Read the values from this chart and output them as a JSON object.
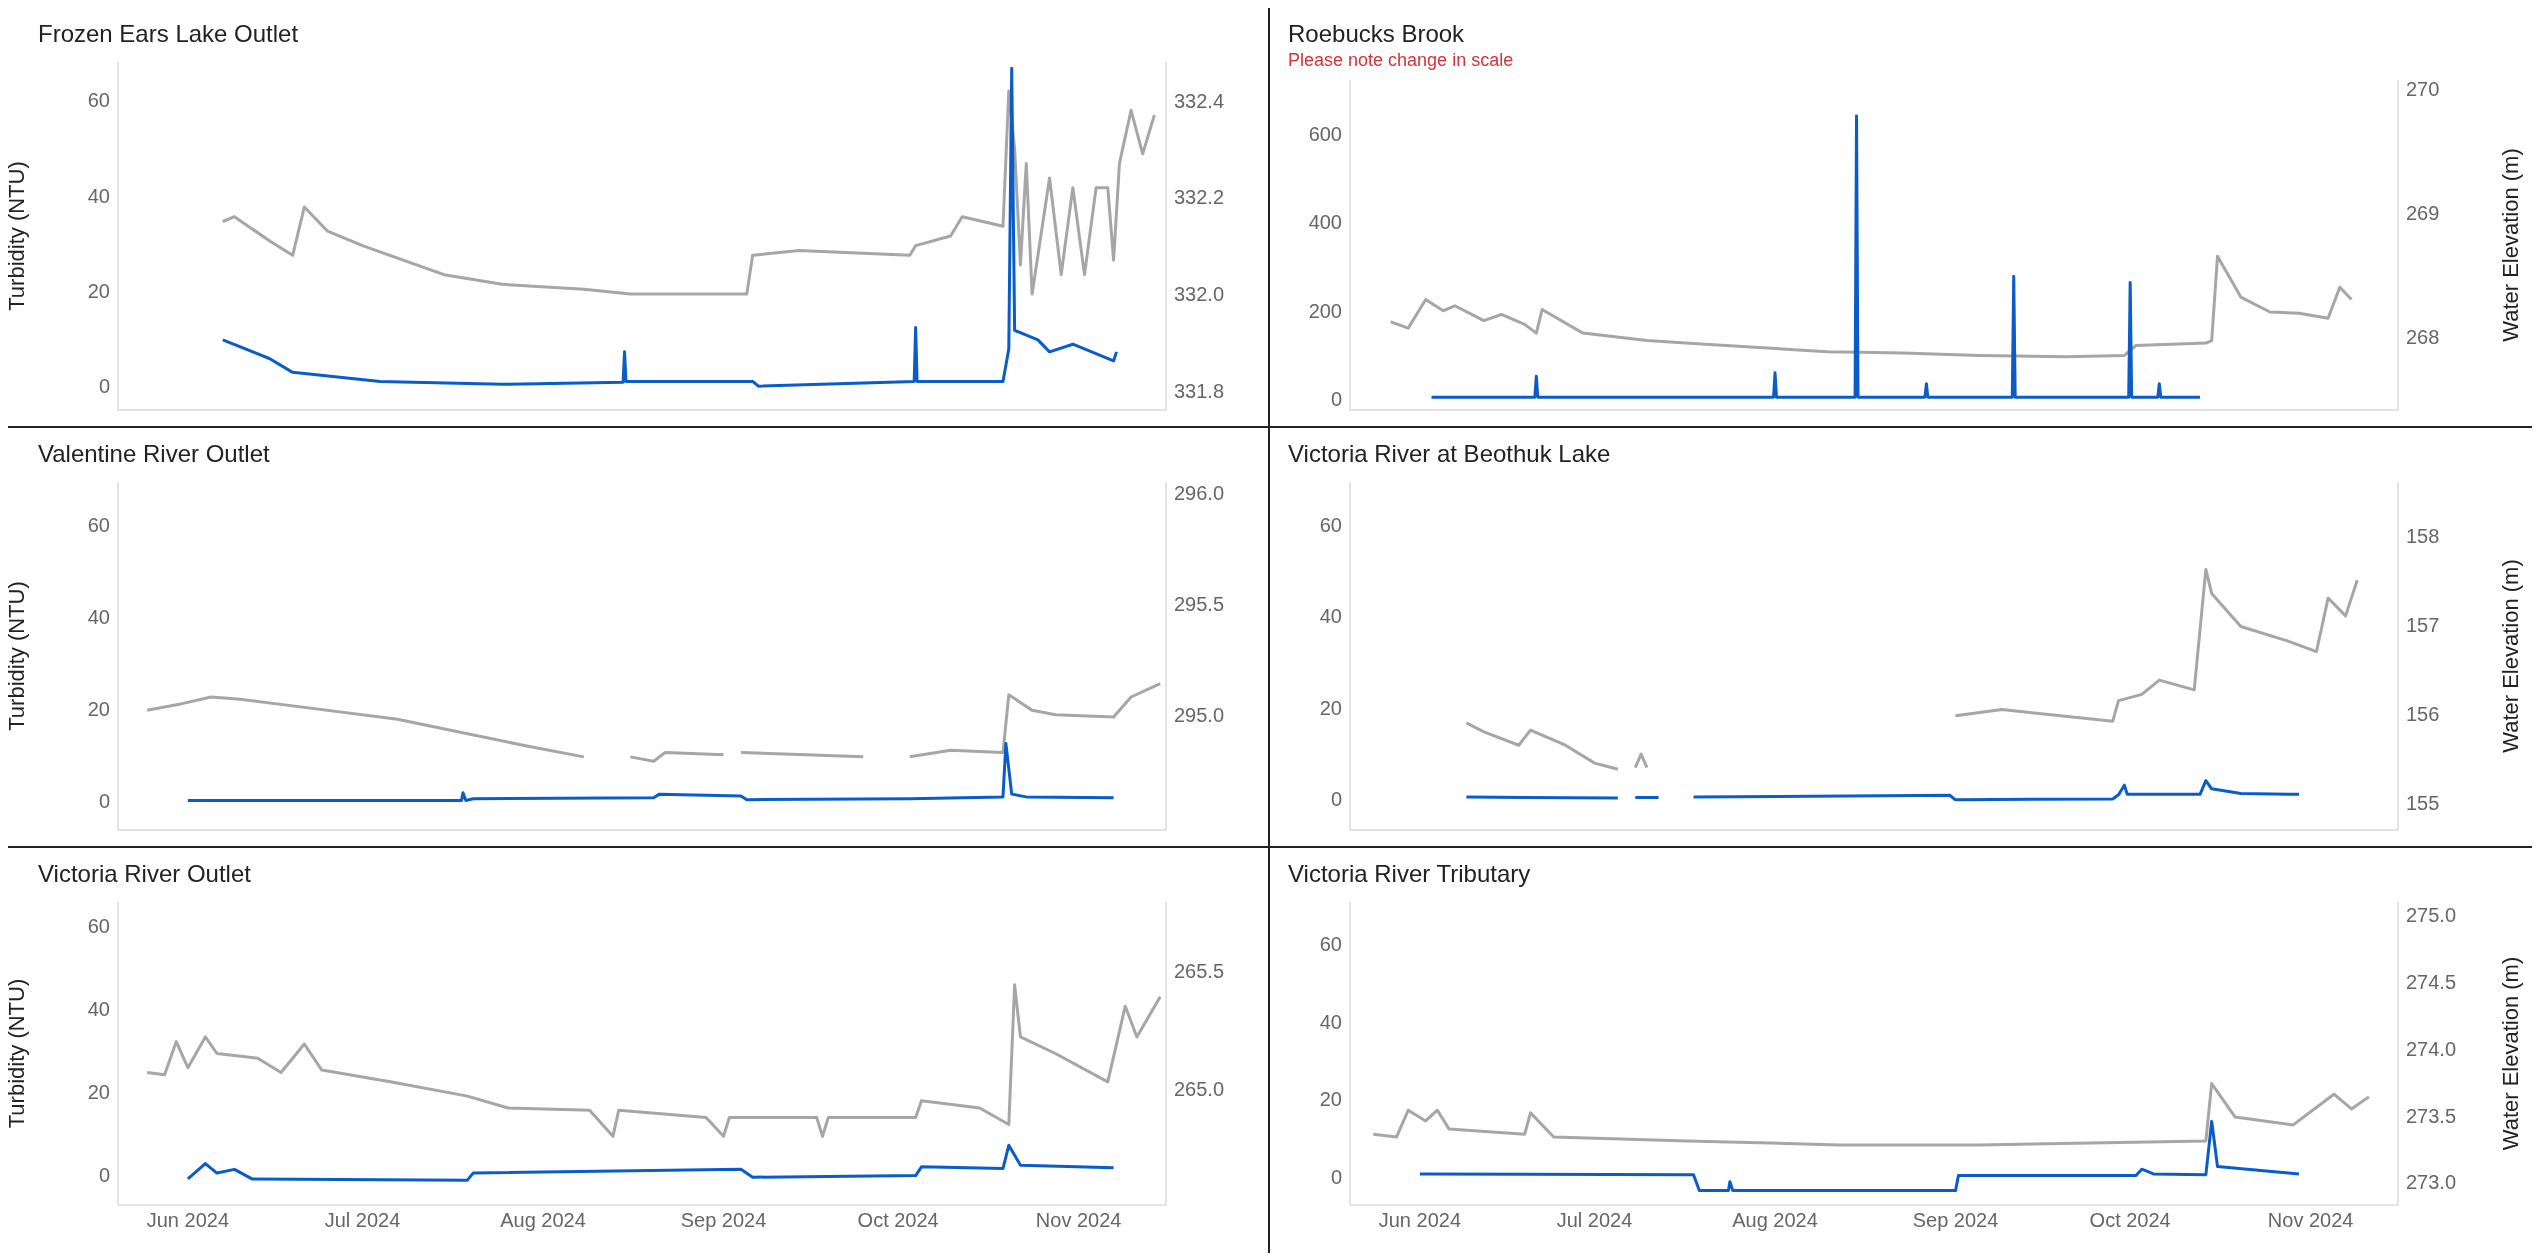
{
  "chart_data": [
    {
      "type": "line",
      "title": "Frozen Ears Lake Outlet",
      "ylabel": "Turbidity (NTU)",
      "xlim": [
        "2024-05-20",
        "2024-11-16"
      ],
      "tick_labels": "y",
      "ylim": [
        -5,
        68
      ],
      "yticks": [
        0,
        20,
        40,
        60
      ],
      "y2lim": [
        331.76,
        332.48
      ],
      "y2ticks": [
        331.8,
        {
          "value": 332,
          "label": "332.0"
        },
        332.2,
        332.4
      ],
      "line_style": "solid",
      "series": [
        {
          "color": "#a6a6a6",
          "axis": "y2",
          "x": [
            "2024-06-07",
            "2024-06-09",
            "2024-06-15",
            "2024-06-19",
            "2024-06-21",
            "2024-06-25",
            "2024-07-01",
            "2024-07-15",
            "2024-07-25",
            "2024-08-08",
            "2024-08-16",
            "2024-08-29",
            "2024-09-05",
            "2024-09-06",
            "2024-09-14",
            "2024-10-03",
            "2024-10-04",
            "2024-10-10",
            "2024-10-12",
            "2024-10-19",
            "2024-10-20",
            "2024-10-21",
            "2024-10-22",
            "2024-10-23",
            "2024-10-24",
            "2024-10-27",
            "2024-10-29",
            "2024-10-31",
            "2024-11-02",
            "2024-11-04",
            "2024-11-06",
            "2024-11-07",
            "2024-11-08",
            "2024-11-10",
            "2024-11-12",
            "2024-11-14"
          ],
          "values": [
            332.15,
            332.16,
            332.11,
            332.08,
            332.18,
            332.13,
            332.1,
            332.04,
            332.02,
            332.01,
            332.0,
            332.0,
            332.0,
            332.08,
            332.09,
            332.08,
            332.1,
            332.12,
            332.16,
            332.14,
            332.42,
            332.3,
            332.06,
            332.27,
            332.0,
            332.24,
            332.04,
            332.22,
            332.04,
            332.22,
            332.22,
            332.07,
            332.27,
            332.38,
            332.29,
            332.37
          ]
        },
        {
          "color": "#0a5cc8",
          "x": [
            "2024-06-07",
            "2024-06-15",
            "2024-06-19",
            "2024-07-04",
            "2024-07-25",
            "2024-08-14T18:00",
            "2024-08-15",
            "2024-08-15T06:00",
            "2024-09-06",
            "2024-09-07",
            "2024-10-03T18:00",
            "2024-10-04",
            "2024-10-04T06:00",
            "2024-10-19",
            "2024-10-20",
            "2024-10-20T12:00",
            "2024-10-21",
            "2024-10-25",
            "2024-10-27",
            "2024-10-31",
            "2024-11-07",
            "2024-11-07T12:00"
          ],
          "values": [
            9.7,
            5.8,
            2.9,
            1,
            0.4,
            0.8,
            7.2,
            1,
            1,
            0,
            1,
            12.3,
            1,
            1,
            7.8,
            66.7,
            11.7,
            9.7,
            7.2,
            8.8,
            5.3,
            7.2
          ]
        }
      ]
    },
    {
      "type": "line",
      "title": "Roebucks Brook",
      "subtitle": "Please note change in scale",
      "y2label": "Water Elevation (m)",
      "xlim": [
        "2024-05-20",
        "2024-11-16"
      ],
      "tick_labels": "y",
      "ylim": [
        -24,
        721
      ],
      "yticks": [
        0,
        200,
        400,
        600
      ],
      "y2lim": [
        267.41,
        270.07
      ],
      "y2ticks": [
        268,
        269,
        270
      ],
      "line_style": "solid",
      "series": [
        {
          "color": "#a6a6a6",
          "axis": "y2",
          "x": [
            "2024-05-27",
            "2024-05-30",
            "2024-06-02",
            "2024-06-05",
            "2024-06-07",
            "2024-06-12",
            "2024-06-15",
            "2024-06-19",
            "2024-06-21",
            "2024-06-22",
            "2024-06-29",
            "2024-07-10",
            "2024-07-20",
            "2024-08-10",
            "2024-08-23",
            "2024-09-05",
            "2024-09-20",
            "2024-09-30",
            "2024-10-02",
            "2024-10-14",
            "2024-10-15",
            "2024-10-16",
            "2024-10-20",
            "2024-10-25",
            "2024-10-30",
            "2024-11-04",
            "2024-11-06",
            "2024-11-08"
          ],
          "values": [
            268.12,
            268.07,
            268.3,
            268.21,
            268.25,
            268.13,
            268.18,
            268.1,
            268.03,
            268.22,
            268.03,
            267.97,
            267.94,
            267.88,
            267.87,
            267.85,
            267.84,
            267.85,
            267.93,
            267.95,
            267.97,
            268.65,
            268.32,
            268.2,
            268.19,
            268.15,
            268.4,
            268.3
          ]
        },
        {
          "color": "#0a5cc8",
          "x": [
            "2024-06-03",
            "2024-06-20T18:00",
            "2024-06-21",
            "2024-06-21T06:00",
            "2024-07-31T18:00",
            "2024-08-01",
            "2024-08-01T06:00",
            "2024-08-14T18:00",
            "2024-08-15",
            "2024-08-15T06:00",
            "2024-08-26T18:00",
            "2024-08-27",
            "2024-08-27T06:00",
            "2024-09-10T18:00",
            "2024-09-11",
            "2024-09-11T06:00",
            "2024-09-30T18:00",
            "2024-10-01",
            "2024-10-01T06:00",
            "2024-10-05T18:00",
            "2024-10-06",
            "2024-10-06T06:00",
            "2024-10-13"
          ],
          "values": [
            5,
            5,
            52,
            5,
            5,
            60,
            5,
            5,
            640,
            5,
            5,
            35,
            5,
            5,
            278,
            5,
            5,
            264,
            5,
            5,
            35,
            5,
            5
          ]
        }
      ]
    },
    {
      "type": "line",
      "title": "Valentine River Outlet",
      "ylabel": "Turbidity (NTU)",
      "xlim": [
        "2024-05-20",
        "2024-11-16"
      ],
      "tick_labels": "y",
      "ylim": [
        -6.4,
        69.3
      ],
      "yticks": [
        0,
        20,
        40,
        60
      ],
      "y2lim": [
        294.48,
        296.05
      ],
      "y2ticks": [
        {
          "value": 295,
          "label": "295.0"
        },
        295.5,
        {
          "value": 296,
          "label": "296.0"
        }
      ],
      "line_style": "solid",
      "series": [
        {
          "color": "#a6a6a6",
          "axis": "y2",
          "x": [
            "2024-05-25",
            "2024-05-31",
            "2024-06-05",
            "2024-06-10",
            "2024-06-19",
            "2024-07-07",
            "2024-07-18",
            "2024-07-29",
            "2024-08-08",
            "2024-08-12",
            "2024-08-16",
            "2024-08-20",
            "2024-08-22",
            "2024-09-01",
            "2024-09-02",
            "2024-09-04",
            "2024-09-25",
            "2024-09-28",
            "2024-10-03",
            "2024-10-10",
            "2024-10-19",
            "2024-10-20",
            "2024-10-24",
            "2024-10-28",
            "2024-11-07",
            "2024-11-10",
            "2024-11-15"
          ],
          "values": [
            295.02,
            295.05,
            295.08,
            295.07,
            295.04,
            294.98,
            294.92,
            294.86,
            294.81,
            null,
            294.81,
            294.79,
            294.83,
            294.82,
            null,
            294.83,
            294.81,
            null,
            294.81,
            294.84,
            294.83,
            295.09,
            295.02,
            295.0,
            294.99,
            295.08,
            295.14
          ]
        },
        {
          "color": "#0a5cc8",
          "x": [
            "2024-06-01",
            "2024-07-18",
            "2024-07-18T06:00",
            "2024-07-18T18:00",
            "2024-07-20",
            "2024-08-20",
            "2024-08-21",
            "2024-09-04",
            "2024-09-05",
            "2024-10-03",
            "2024-10-19",
            "2024-10-19T12:00",
            "2024-10-20T12:00",
            "2024-10-23",
            "2024-11-07"
          ],
          "values": [
            0,
            0,
            1.7,
            0,
            0.4,
            0.6,
            1.4,
            1.0,
            0.2,
            0.4,
            0.8,
            12.4,
            1.4,
            0.8,
            0.6
          ]
        }
      ]
    },
    {
      "type": "line",
      "title": "Victoria River at Beothuk Lake",
      "y2label": "Water Elevation (m)",
      "xlim": [
        "2024-05-20",
        "2024-11-16"
      ],
      "tick_labels": "y",
      "ylim": [
        -6.8,
        69.3
      ],
      "yticks": [
        0,
        20,
        40,
        60
      ],
      "y2lim": [
        154.7,
        158.6
      ],
      "y2ticks": [
        155,
        156,
        157,
        158
      ],
      "line_style": "solid",
      "series": [
        {
          "color": "#a6a6a6",
          "axis": "y2",
          "x": [
            "2024-06-09",
            "2024-06-12",
            "2024-06-18",
            "2024-06-20",
            "2024-06-26",
            "2024-07-01",
            "2024-07-05",
            "2024-07-06",
            "2024-07-08",
            "2024-07-09",
            "2024-07-10",
            "2024-07-11",
            "2024-09-01",
            "2024-09-09",
            "2024-09-28",
            "2024-09-29",
            "2024-10-03",
            "2024-10-06",
            "2024-10-12",
            "2024-10-14",
            "2024-10-15",
            "2024-10-20",
            "2024-10-28",
            "2024-11-02",
            "2024-11-04",
            "2024-11-07",
            "2024-11-09"
          ],
          "values": [
            155.9,
            155.8,
            155.65,
            155.82,
            155.65,
            155.45,
            155.38,
            null,
            155.4,
            155.55,
            155.4,
            null,
            155.98,
            156.05,
            155.92,
            156.15,
            156.22,
            156.38,
            156.27,
            157.62,
            157.35,
            156.98,
            156.82,
            156.7,
            157.3,
            157.1,
            157.5
          ]
        },
        {
          "color": "#0a5cc8",
          "x": [
            "2024-06-09",
            "2024-07-05",
            "2024-07-06",
            "2024-07-08",
            "2024-07-12",
            "2024-07-13",
            "2024-07-18",
            "2024-08-31",
            "2024-09-01",
            "2024-09-28",
            "2024-09-29",
            "2024-09-30",
            "2024-09-30T12:00",
            "2024-10-13",
            "2024-10-14",
            "2024-10-15",
            "2024-10-20",
            "2024-10-30"
          ],
          "values": [
            0.4,
            0.2,
            null,
            0.3,
            0.3,
            null,
            0.4,
            0.8,
            -0.2,
            0.0,
            0.9,
            3,
            1.0,
            1.0,
            4,
            2.2,
            1.2,
            1.0
          ]
        }
      ]
    },
    {
      "type": "line",
      "title": "Victoria River Outlet",
      "ylabel": "Turbidity (NTU)",
      "xlim": [
        "2024-05-20",
        "2024-11-16"
      ],
      "ylim": [
        -7.3,
        65.8
      ],
      "y2lim": [
        264.51,
        265.79
      ],
      "xticks": [
        {
          "value": "2024-06-01",
          "label": "Jun 2024"
        },
        {
          "value": "2024-07-01",
          "label": "Jul 2024"
        },
        {
          "value": "2024-08-01",
          "label": "Aug 2024"
        },
        {
          "value": "2024-09-01",
          "label": "Sep 2024"
        },
        {
          "value": "2024-10-01",
          "label": "Oct 2024"
        },
        {
          "value": "2024-11-01",
          "label": "Nov 2024"
        }
      ],
      "yticks": [
        0,
        20,
        40,
        60
      ],
      "y2ticks": [
        {
          "value": 265,
          "label": "265.0"
        },
        265.5
      ],
      "line_style": "solid",
      "series": [
        {
          "color": "#a6a6a6",
          "axis": "y2",
          "x": [
            "2024-05-25",
            "2024-05-28",
            "2024-05-30",
            "2024-06-01",
            "2024-06-04",
            "2024-06-06",
            "2024-06-13",
            "2024-06-17",
            "2024-06-21",
            "2024-06-24",
            "2024-07-06",
            "2024-07-19",
            "2024-07-26",
            "2024-08-09",
            "2024-08-13",
            "2024-08-14",
            "2024-08-29",
            "2024-09-01",
            "2024-09-02",
            "2024-09-17",
            "2024-09-18",
            "2024-09-19",
            "2024-10-04",
            "2024-10-05",
            "2024-10-15",
            "2024-10-20",
            "2024-10-21",
            "2024-10-22",
            "2024-10-28",
            "2024-11-06",
            "2024-11-09",
            "2024-11-11",
            "2024-11-15"
          ],
          "values": [
            265.07,
            265.06,
            265.2,
            265.09,
            265.22,
            265.15,
            265.13,
            265.07,
            265.19,
            265.08,
            265.03,
            264.97,
            264.92,
            264.91,
            264.8,
            264.91,
            264.88,
            264.8,
            264.88,
            264.88,
            264.8,
            264.88,
            264.88,
            264.95,
            264.92,
            264.85,
            265.44,
            265.22,
            265.15,
            265.03,
            265.35,
            265.22,
            265.39
          ]
        },
        {
          "color": "#0a5cc8",
          "x": [
            "2024-06-01",
            "2024-06-04",
            "2024-06-06",
            "2024-06-09",
            "2024-06-12",
            "2024-07-19",
            "2024-07-20",
            "2024-09-04",
            "2024-09-06",
            "2024-10-04",
            "2024-10-05",
            "2024-10-19",
            "2024-10-20",
            "2024-10-22",
            "2024-11-07"
          ],
          "values": [
            -1,
            2.7,
            0.4,
            1.3,
            -1,
            -1.3,
            0.4,
            1.3,
            -0.6,
            -0.2,
            1.9,
            1.5,
            7.1,
            2.3,
            1.7
          ]
        }
      ]
    },
    {
      "type": "line",
      "title": "Victoria River Tributary",
      "y2label": "Water Elevation (m)",
      "xlim": [
        "2024-05-20",
        "2024-11-16"
      ],
      "ylim": [
        -7.2,
        70.7
      ],
      "y2lim": [
        272.83,
        275.1
      ],
      "xticks": [
        {
          "value": "2024-06-01",
          "label": "Jun 2024"
        },
        {
          "value": "2024-07-01",
          "label": "Jul 2024"
        },
        {
          "value": "2024-08-01",
          "label": "Aug 2024"
        },
        {
          "value": "2024-09-01",
          "label": "Sep 2024"
        },
        {
          "value": "2024-10-01",
          "label": "Oct 2024"
        },
        {
          "value": "2024-11-01",
          "label": "Nov 2024"
        }
      ],
      "yticks": [
        0,
        20,
        40,
        60
      ],
      "y2ticks": [
        {
          "value": 273,
          "label": "273.0"
        },
        273.5,
        {
          "value": 274,
          "label": "274.0"
        },
        274.5,
        {
          "value": 275,
          "label": "275.0"
        }
      ],
      "line_style": "solid",
      "series": [
        {
          "color": "#a6a6a6",
          "axis": "y2",
          "x": [
            "2024-05-24",
            "2024-05-28",
            "2024-05-30",
            "2024-06-02",
            "2024-06-04",
            "2024-06-06",
            "2024-06-19",
            "2024-06-20",
            "2024-06-24",
            "2024-07-17",
            "2024-08-12",
            "2024-09-05",
            "2024-10-14",
            "2024-10-15",
            "2024-10-19",
            "2024-10-29",
            "2024-11-05",
            "2024-11-08",
            "2024-11-11"
          ],
          "values": [
            273.36,
            273.34,
            273.54,
            273.46,
            273.54,
            273.4,
            273.36,
            273.52,
            273.34,
            273.31,
            273.28,
            273.28,
            273.31,
            273.74,
            273.49,
            273.43,
            273.66,
            273.55,
            273.64
          ]
        },
        {
          "color": "#0a5cc8",
          "x": [
            "2024-06-01",
            "2024-07-18",
            "2024-07-19",
            "2024-07-24",
            "2024-07-24T06:00",
            "2024-07-24T18:00",
            "2024-09-01",
            "2024-09-01T12:00",
            "2024-10-02",
            "2024-10-03",
            "2024-10-05",
            "2024-10-14",
            "2024-10-15",
            "2024-10-16",
            "2024-10-30"
          ],
          "values": [
            0.8,
            0.6,
            -3.5,
            -3.5,
            -1.2,
            -3.5,
            -3.5,
            0.4,
            0.4,
            2,
            0.8,
            0.6,
            14.3,
            2.7,
            0.8
          ]
        }
      ]
    }
  ]
}
